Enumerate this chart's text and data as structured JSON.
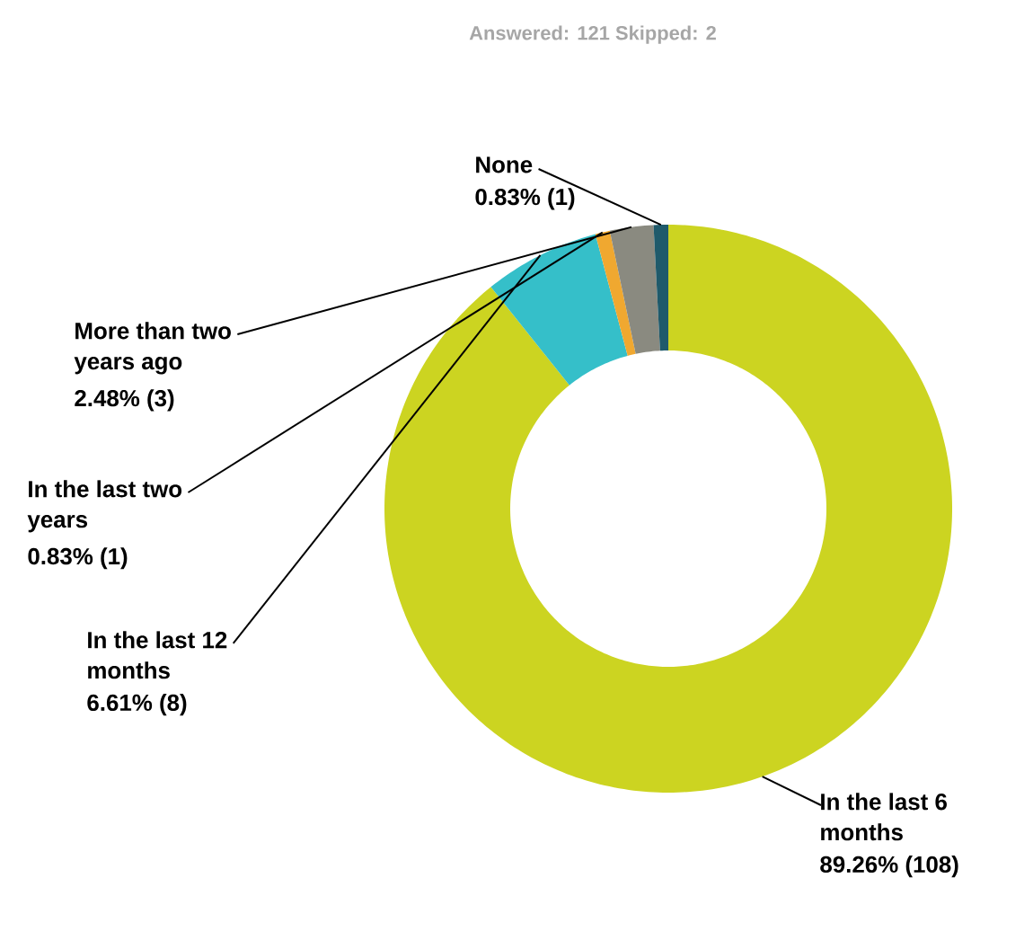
{
  "chart_data": {
    "type": "donut",
    "categories": [
      "In the last 6 months",
      "In the last 12 months",
      "In the last two years",
      "More than two years ago",
      "None"
    ],
    "values": [
      89.26,
      6.61,
      0.83,
      2.48,
      0.83
    ],
    "colors": [
      "#ccd421",
      "#35bfc9",
      "#f0a830",
      "#8a8a80",
      "#1f5a6b"
    ],
    "value_labels": [
      "89.26% (108)",
      "6.61% (8)",
      "0.83% (1)",
      "2.48% (3)",
      "0.83% (1)"
    ],
    "annotations": [
      "Answered: 121    Skipped: 2"
    ]
  }
}
